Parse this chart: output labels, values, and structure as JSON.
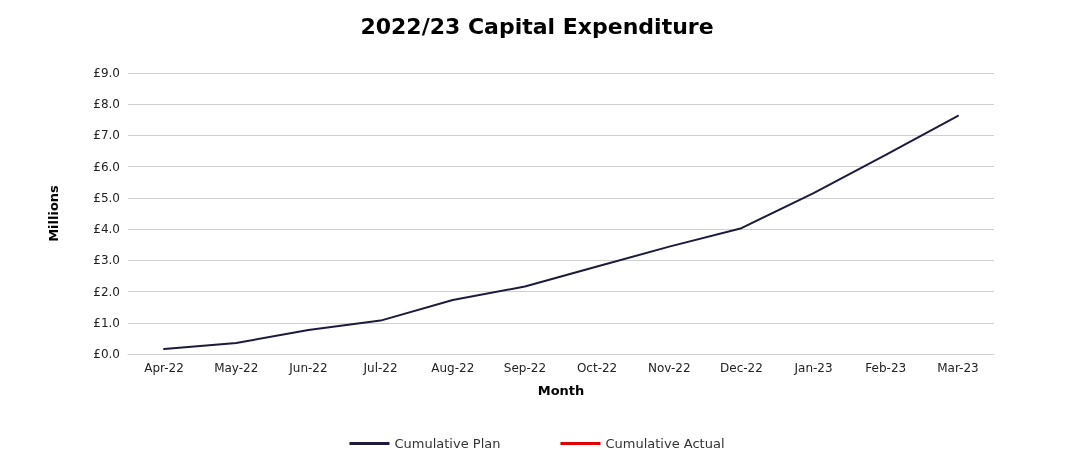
{
  "chart_data": {
    "type": "line",
    "title": "2022/23 Capital Expenditure",
    "xlabel": "Month",
    "ylabel": "Millions",
    "categories": [
      "Apr-22",
      "May-22",
      "Jun-22",
      "Jul-22",
      "Aug-22",
      "Sep-22",
      "Oct-22",
      "Nov-22",
      "Dec-22",
      "Jan-23",
      "Feb-23",
      "Mar-23"
    ],
    "series": [
      {
        "name": "Cumulative Plan",
        "color": "#1c1c3a",
        "values": [
          0.16,
          0.35,
          0.77,
          1.07,
          1.73,
          2.16,
          2.8,
          3.44,
          4.03,
          5.15,
          6.38,
          7.63
        ]
      },
      {
        "name": "Cumulative Actual",
        "color": "#e00000",
        "values": [
          null,
          null,
          null,
          null,
          null,
          null,
          null,
          null,
          null,
          null,
          null,
          null
        ]
      }
    ],
    "ylim": [
      0,
      9
    ],
    "yticks": [
      {
        "value": 0,
        "label": "£0.0"
      },
      {
        "value": 1,
        "label": "£1.0"
      },
      {
        "value": 2,
        "label": "£2.0"
      },
      {
        "value": 3,
        "label": "£3.0"
      },
      {
        "value": 4,
        "label": "£4.0"
      },
      {
        "value": 5,
        "label": "£5.0"
      },
      {
        "value": 6,
        "label": "£6.0"
      },
      {
        "value": 7,
        "label": "£7.0"
      },
      {
        "value": 8,
        "label": "£8.0"
      },
      {
        "value": 9,
        "label": "£9.0"
      }
    ],
    "grid": "y",
    "legend": "bottom",
    "marker": "none",
    "line_style": "solid"
  }
}
